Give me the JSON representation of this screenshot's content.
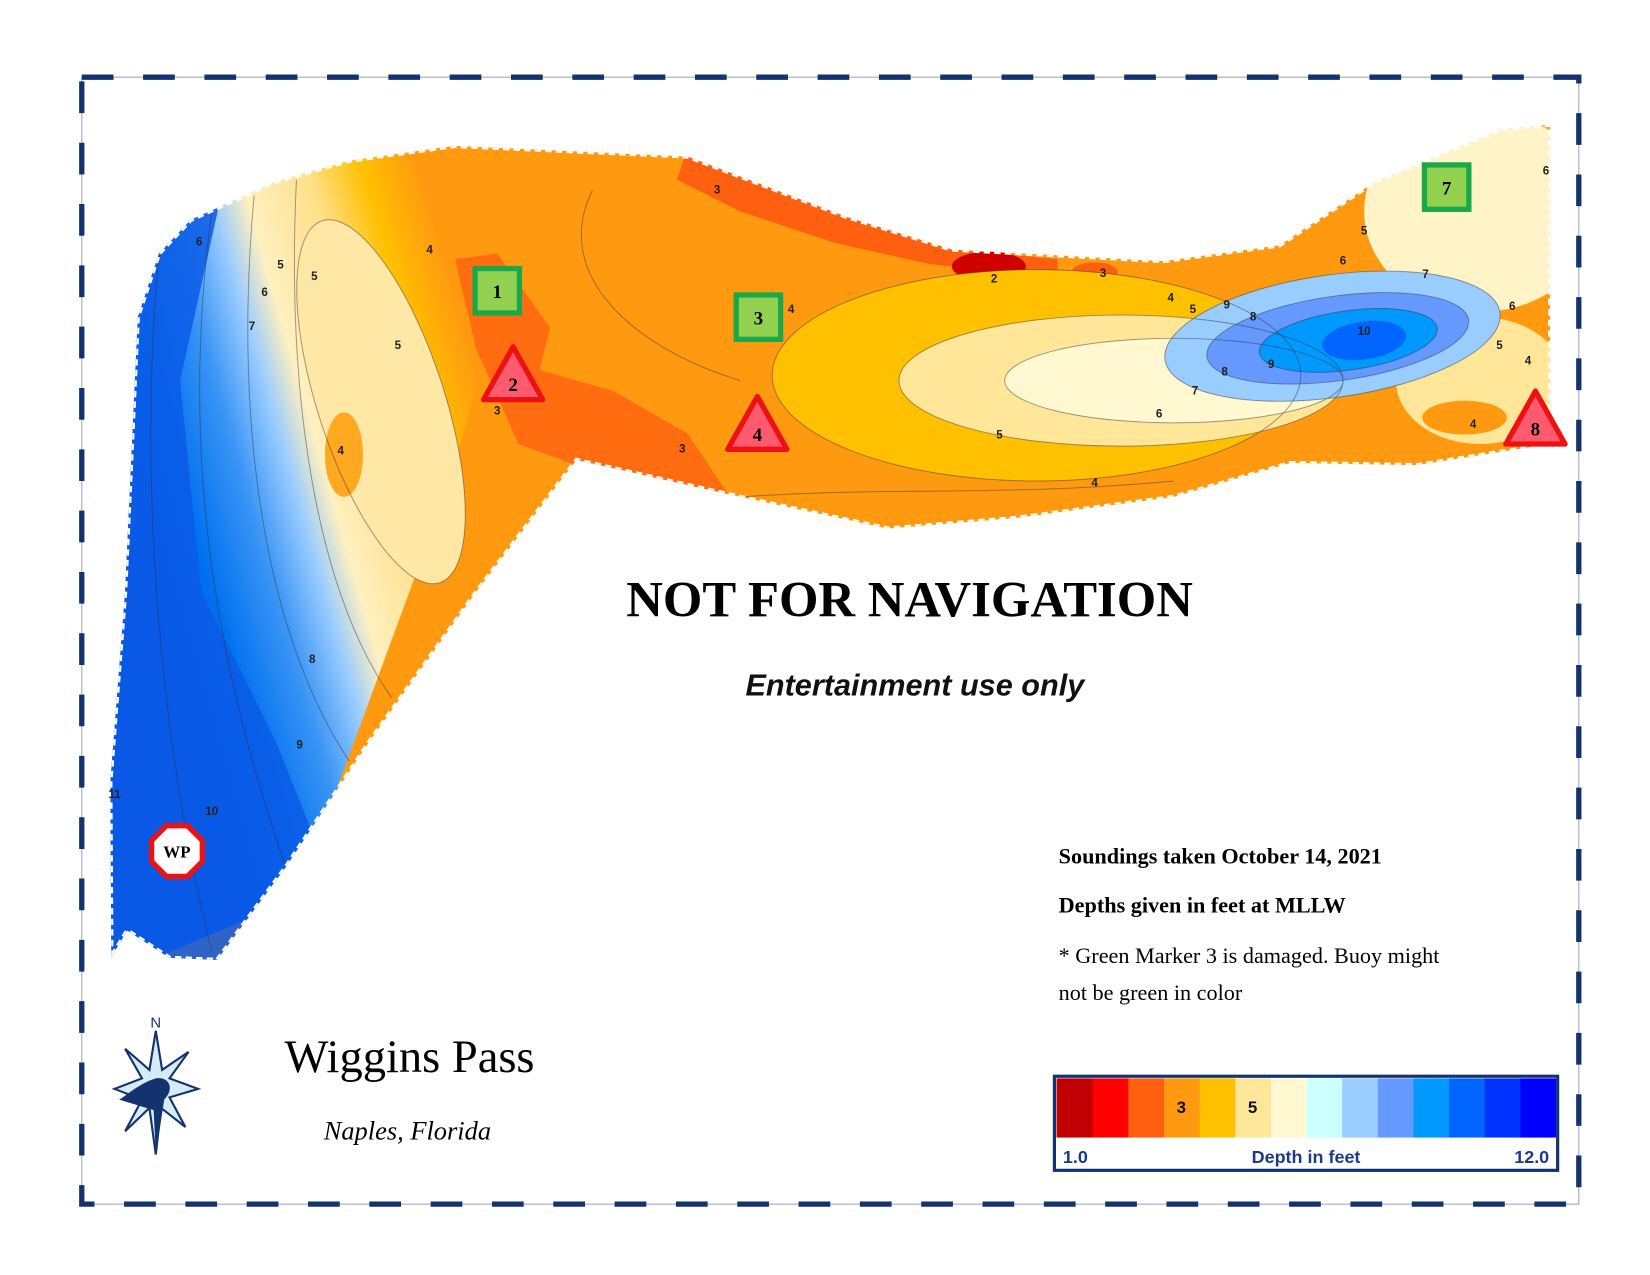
{
  "warning": {
    "title": "NOT FOR NAVIGATION",
    "subtitle": "Entertainment use only"
  },
  "location": {
    "name": "Wiggins Pass",
    "place": "Naples, Florida"
  },
  "compass": {
    "north": "N"
  },
  "notes": {
    "soundings": "Soundings taken October 14, 2021",
    "datum": "Depths given in feet at MLLW",
    "note_lines": [
      "* Green Marker 3 is damaged. Buoy might",
      "not be green in color"
    ]
  },
  "markers": [
    {
      "label": "1",
      "kind": "green"
    },
    {
      "label": "3",
      "kind": "green"
    },
    {
      "label": "7",
      "kind": "green"
    },
    {
      "label": "2",
      "kind": "red"
    },
    {
      "label": "4",
      "kind": "red"
    },
    {
      "label": "8",
      "kind": "red"
    },
    {
      "label": "WP",
      "kind": "waypoint"
    }
  ],
  "contour_labels": [
    "6",
    "5",
    "6",
    "7",
    "5",
    "4",
    "5",
    "4",
    "3",
    "3",
    "2",
    "3",
    "4",
    "5",
    "9",
    "8",
    "10",
    "9",
    "8",
    "7",
    "6",
    "5",
    "4",
    "3",
    "4",
    "6",
    "7",
    "5",
    "6",
    "6",
    "5",
    "4",
    "4",
    "8",
    "9",
    "10",
    "11"
  ],
  "legend": {
    "swatches": [
      {
        "color": "#c00000"
      },
      {
        "color": "#ff0000"
      },
      {
        "color": "#ff6010"
      },
      {
        "color": "#ff9a10",
        "label": "3"
      },
      {
        "color": "#ffc000"
      },
      {
        "color": "#ffe699",
        "label": "5"
      },
      {
        "color": "#fff8d0"
      },
      {
        "color": "#ccffff"
      },
      {
        "color": "#99ccff"
      },
      {
        "color": "#6699ff"
      },
      {
        "color": "#0099ff"
      },
      {
        "color": "#0066ff"
      },
      {
        "color": "#0033ff"
      },
      {
        "color": "#0000ff"
      }
    ],
    "min_label": "1.0",
    "title": "Depth in feet",
    "max_label": "12.0"
  }
}
